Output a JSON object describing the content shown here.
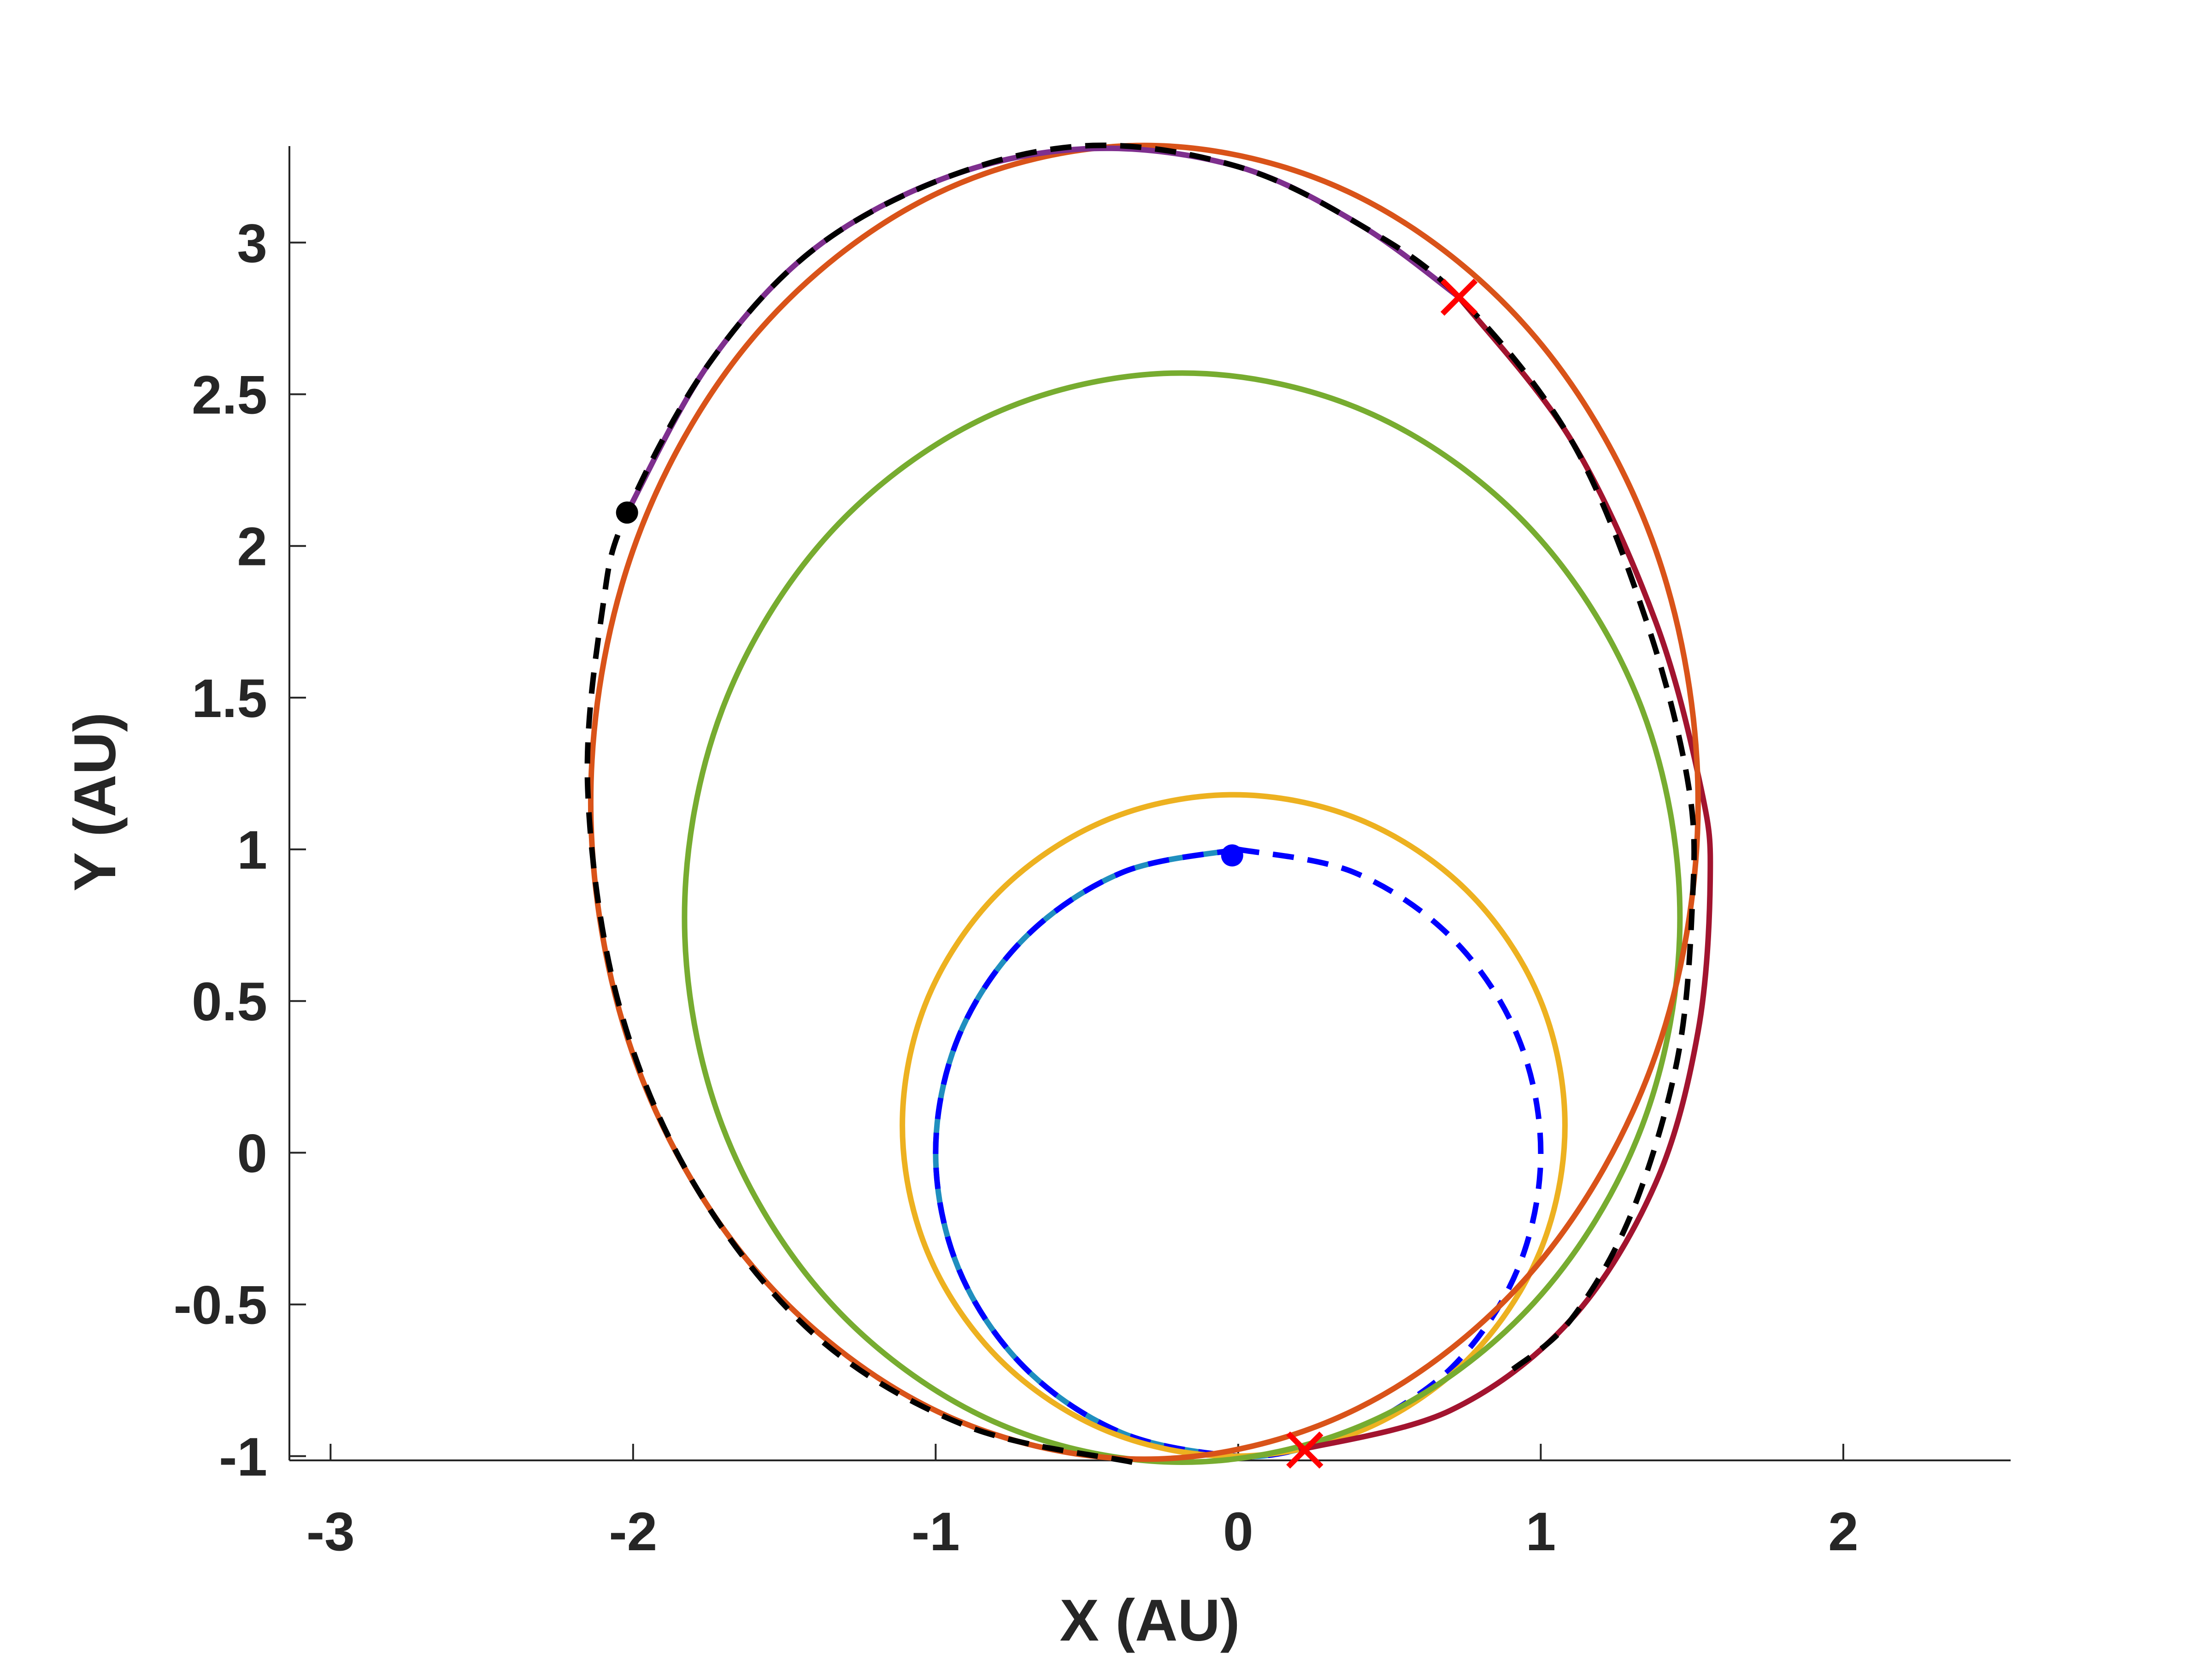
{
  "chart_data": {
    "type": "line",
    "xlabel": "X (AU)",
    "ylabel": "Y (AU)",
    "xlim": [
      -3.136,
      2.553
    ],
    "ylim": [
      -1.014,
      3.318
    ],
    "xticks": [
      -3,
      -2,
      -1,
      0,
      1,
      2
    ],
    "yticks": [
      -1,
      -0.5,
      0,
      0.5,
      1,
      1.5,
      2,
      2.5,
      3
    ],
    "series": [
      {
        "color": "#1f8fbf",
        "style": "solid",
        "x": [
          0,
          -0.383,
          -0.707,
          -0.924,
          -1,
          -0.924,
          -0.707,
          -0.383,
          0,
          0.225
        ],
        "y": [
          1,
          0.924,
          0.707,
          0.383,
          0,
          -0.383,
          -0.707,
          -0.924,
          -1,
          -0.974
        ]
      },
      {
        "color": "#0000ff",
        "style": "dashed",
        "x": [
          0,
          -0.383,
          -0.707,
          -0.924,
          -1,
          -0.924,
          -0.707,
          -0.383,
          0,
          0.225
        ],
        "y": [
          1,
          0.924,
          0.707,
          0.383,
          0,
          -0.383,
          -0.707,
          -0.924,
          -1,
          -0.974
        ]
      },
      {
        "color": "#0000ff",
        "style": "dashed",
        "x": [
          0,
          0.383,
          0.707,
          0.924,
          1,
          0.924,
          0.707,
          0.383,
          0.225
        ],
        "y": [
          1,
          0.924,
          0.707,
          0.383,
          0,
          -0.383,
          -0.707,
          -0.924,
          -0.974
        ]
      },
      {
        "color": "#edb120",
        "style": "solid",
        "x": [
          1.08,
          0.997,
          0.759,
          0.404,
          -0.015,
          -0.434,
          -0.789,
          -1.027,
          -1.11,
          -1.027,
          -0.789,
          -0.434,
          -0.015,
          0.404,
          0.759,
          0.997,
          1.08
        ],
        "y": [
          0.09,
          0.507,
          0.861,
          1.097,
          1.18,
          1.097,
          0.861,
          0.507,
          0.09,
          -0.327,
          -0.681,
          -0.917,
          -1.0,
          -0.917,
          -0.681,
          -0.327,
          0.09
        ]
      },
      {
        "color": "#77ac30",
        "style": "solid",
        "x": [
          1.46,
          1.335,
          0.978,
          0.445,
          -0.185,
          -0.815,
          -1.348,
          -1.705,
          -1.83,
          -1.705,
          -1.348,
          -0.815,
          -0.185,
          0.445,
          0.978,
          1.335,
          1.46
        ],
        "y": [
          0.775,
          1.462,
          2.044,
          2.433,
          2.57,
          2.433,
          2.044,
          1.462,
          0.775,
          0.088,
          -0.494,
          -0.883,
          -1.02,
          -0.883,
          -0.494,
          0.088,
          0.775
        ]
      },
      {
        "color": "#a2142f",
        "style": "solid",
        "x": [
          0.73,
          1.1,
          1.38,
          1.53,
          1.56,
          1.52,
          1.38,
          1.1,
          0.7,
          0.2
        ],
        "y": [
          2.82,
          2.35,
          1.75,
          1.2,
          0.9,
          0.4,
          -0.1,
          -0.55,
          -0.85,
          -0.98
        ]
      },
      {
        "color": "#d95319",
        "style": "solid",
        "x": [
          1.52,
          1.381,
          0.984,
          0.39,
          -0.31,
          -1.01,
          -1.604,
          -2.001,
          -2.14,
          -2.001,
          -1.604,
          -1.01,
          -0.31,
          0.39,
          0.984,
          1.381,
          1.52
        ],
        "y": [
          1.155,
          1.984,
          2.686,
          3.155,
          3.32,
          3.155,
          2.686,
          1.984,
          1.155,
          0.326,
          -0.376,
          -0.845,
          -1.01,
          -0.845,
          -0.376,
          0.326,
          1.155
        ]
      },
      {
        "color": "#7e2f8e",
        "style": "solid",
        "x": [
          -2.02,
          -1.75,
          -1.4,
          -0.95,
          -0.48,
          0,
          0.4,
          0.73
        ],
        "y": [
          2.11,
          2.6,
          2.98,
          3.22,
          3.31,
          3.25,
          3.06,
          2.82
        ]
      },
      {
        "color": "#000000",
        "style": "dashed",
        "x": [
          -0.35,
          -0.9,
          -1.4,
          -1.8,
          -2.05,
          -2.15,
          -2.1,
          -2.02,
          -1.75,
          -1.4,
          -0.95,
          -0.48,
          0,
          0.4,
          0.73,
          1.1,
          1.35,
          1.49,
          1.5,
          1.45,
          1.3,
          1.1,
          0.9
        ],
        "y": [
          -1.02,
          -0.9,
          -0.6,
          -0.1,
          0.5,
          1.2,
          1.8,
          2.11,
          2.6,
          2.98,
          3.22,
          3.32,
          3.25,
          3.06,
          2.82,
          2.35,
          1.75,
          1.2,
          0.8,
          0.3,
          -0.2,
          -0.55,
          -0.72
        ]
      },
      {
        "color": "#0000ff",
        "style": "none",
        "marker": "o",
        "x": [
          -0.02
        ],
        "y": [
          0.98
        ]
      },
      {
        "color": "#000000",
        "style": "none",
        "marker": "o",
        "x": [
          -2.02
        ],
        "y": [
          2.11
        ]
      },
      {
        "color": "#ff0000",
        "style": "none",
        "marker": "x",
        "x": [
          0.73,
          0.22
        ],
        "y": [
          2.82,
          -0.98
        ]
      }
    ]
  }
}
